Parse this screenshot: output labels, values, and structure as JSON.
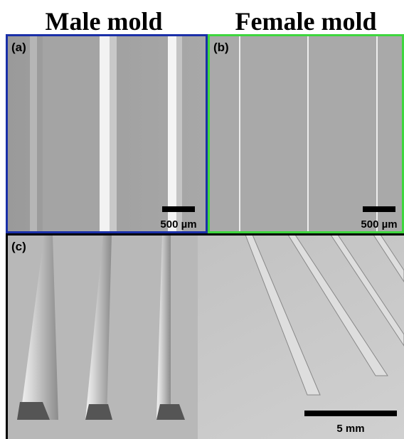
{
  "titles": {
    "left": "Male mold",
    "right": "Female mold"
  },
  "panels": [
    {
      "label": "(a)",
      "scale_bar": "500 µm"
    },
    {
      "label": "(b)",
      "scale_bar": "500 µm"
    },
    {
      "label": "(c)",
      "scale_bar": "5 mm"
    }
  ]
}
